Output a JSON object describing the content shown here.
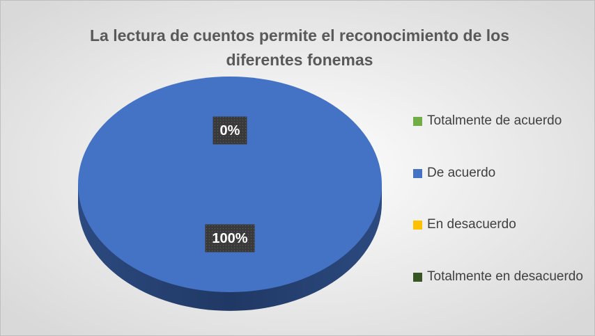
{
  "chart_data": {
    "type": "pie",
    "title": "La lectura de cuentos permite el reconocimiento de los diferentes fonemas",
    "categories": [
      "Totalmente de acuerdo",
      "De acuerdo",
      "En desacuerdo",
      "Totalmente en desacuerdo"
    ],
    "values": [
      0,
      100,
      0,
      0
    ],
    "value_labels": [
      "0%",
      "100%",
      null,
      null
    ],
    "colors": [
      "#70ad47",
      "#4472c4",
      "#ffc000",
      "#375623"
    ],
    "legend": "right"
  }
}
